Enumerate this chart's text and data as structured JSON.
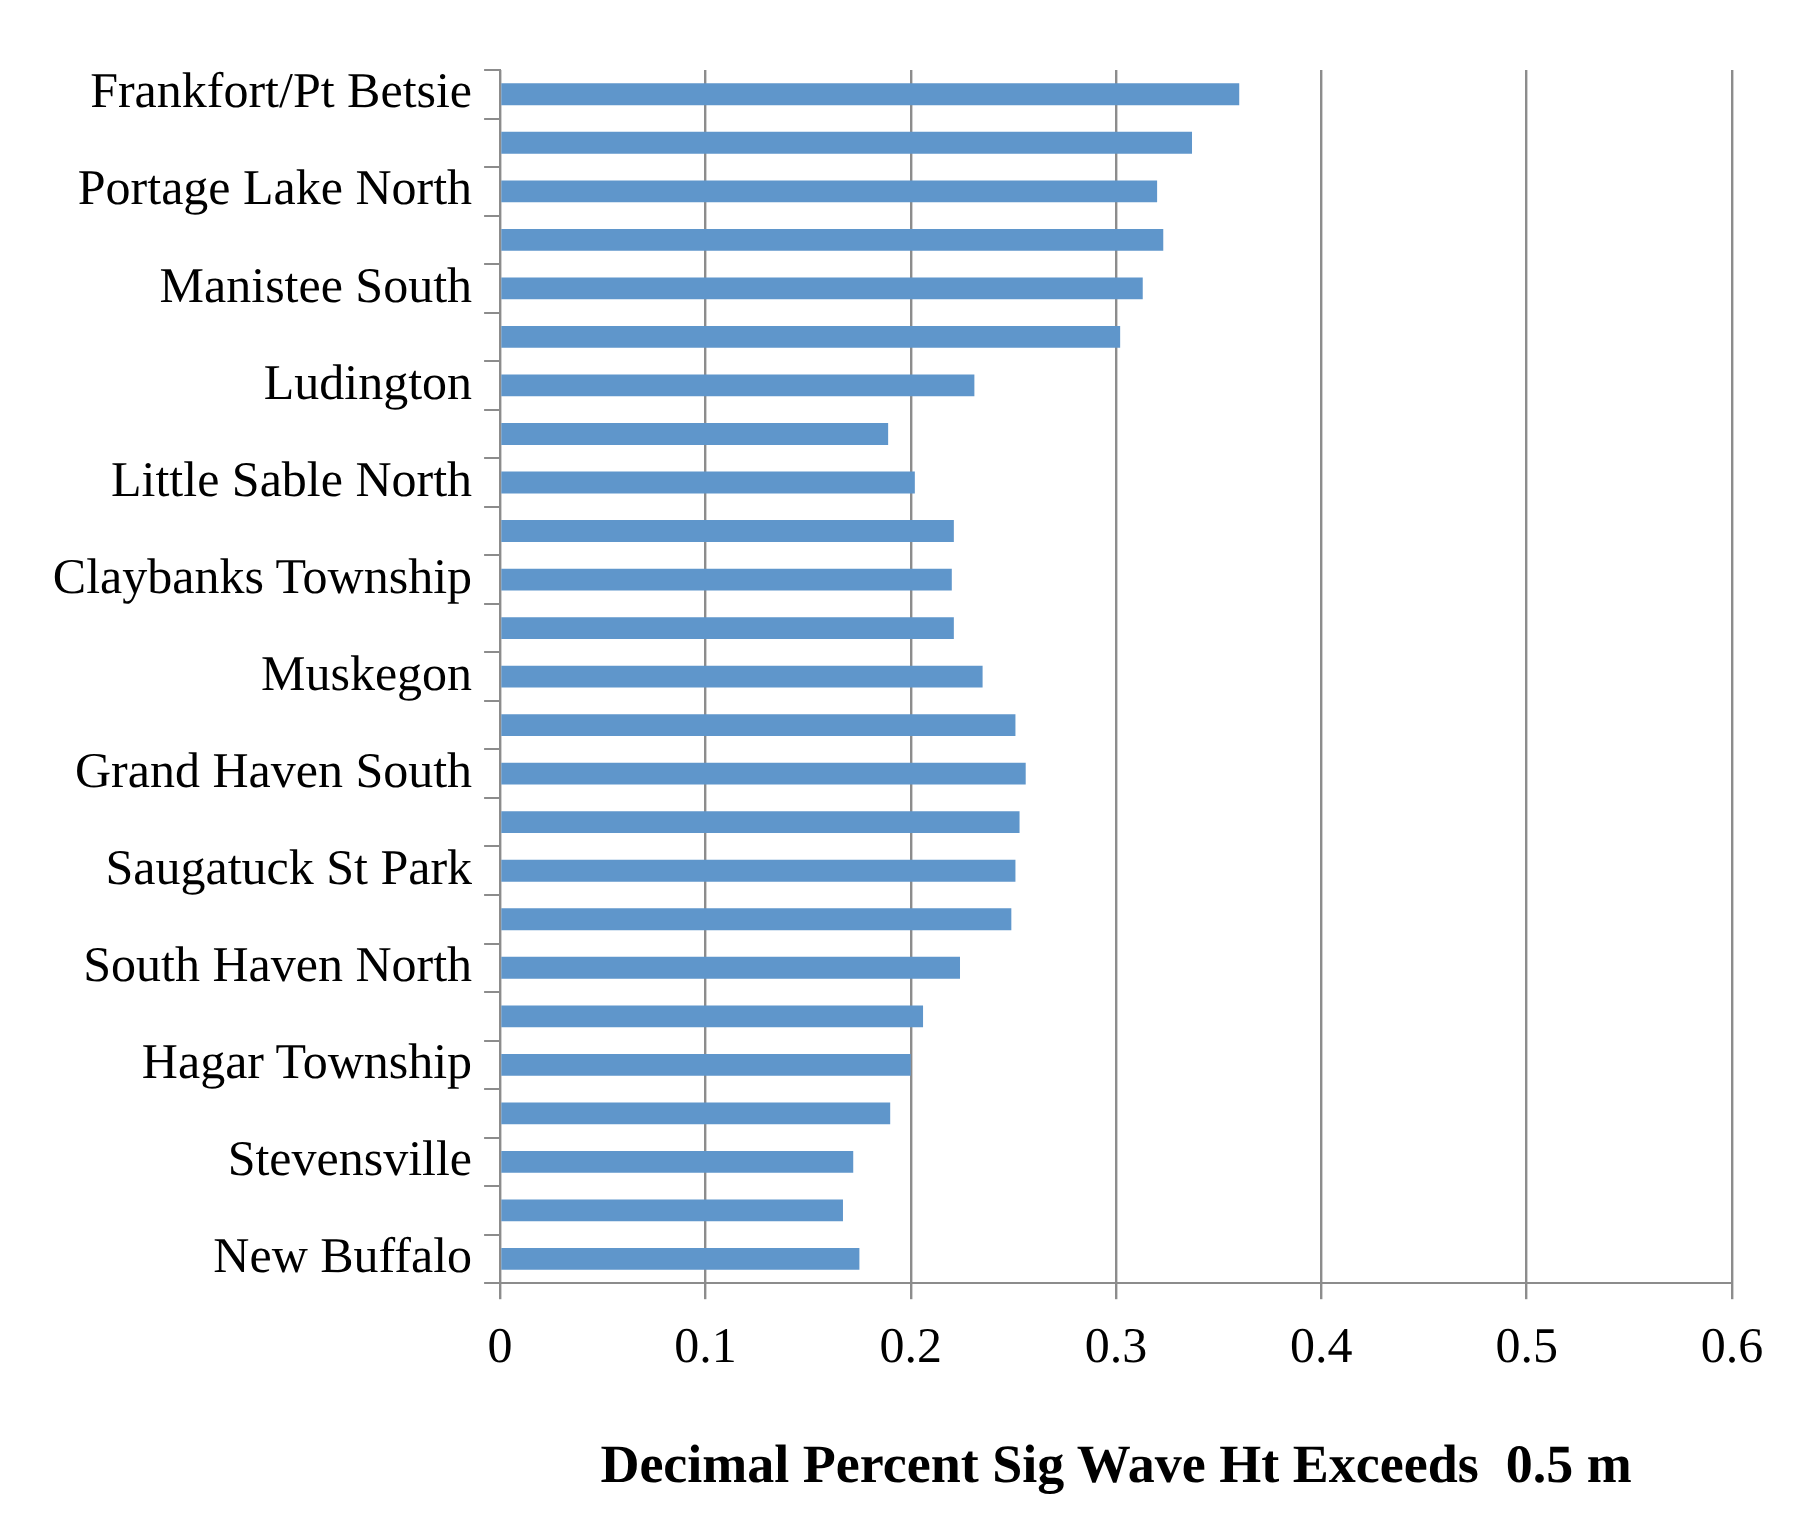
{
  "chart_data": {
    "type": "bar",
    "orientation": "horizontal",
    "xlabel": "Decimal Percent Sig Wave Ht Exceeds  0.5 m",
    "categories": [
      "Frankfort/Pt Betsie",
      null,
      "Portage Lake North",
      null,
      "Manistee South",
      null,
      "Ludington",
      null,
      "Little Sable North",
      null,
      "Claybanks Township",
      null,
      "Muskegon",
      null,
      "Grand Haven South",
      null,
      "Saugatuck St Park",
      null,
      "South Haven North",
      null,
      "Hagar Township",
      null,
      "Stevensville",
      null,
      "New Buffalo"
    ],
    "values": [
      0.36,
      0.337,
      0.32,
      0.323,
      0.313,
      0.302,
      0.231,
      0.189,
      0.202,
      0.221,
      0.22,
      0.221,
      0.235,
      0.251,
      0.256,
      0.253,
      0.251,
      0.249,
      0.224,
      0.206,
      0.2,
      0.19,
      0.172,
      0.167,
      0.175
    ],
    "color": "#5f96cb",
    "xlim": [
      0,
      0.6
    ],
    "xticks": [
      0,
      0.1,
      0.2,
      0.3,
      0.4,
      0.5,
      0.6
    ],
    "grid": "x"
  }
}
